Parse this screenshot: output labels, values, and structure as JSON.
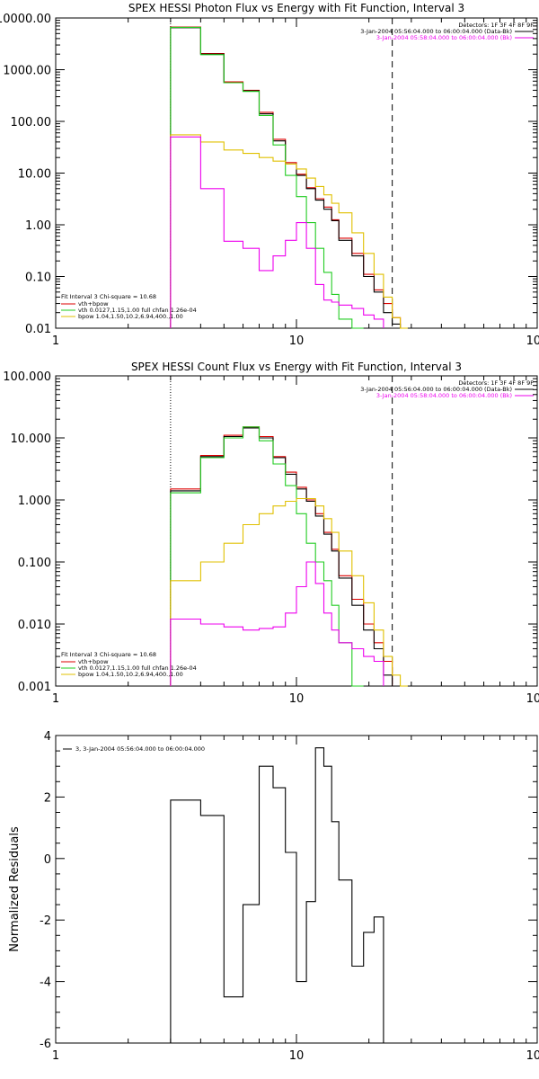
{
  "colors": {
    "total": "#000000",
    "vth_plus_bpow": "#dd0000",
    "vth": "#22cc22",
    "bpow": "#e0c000",
    "background": "#ee00ee",
    "frame": "#000000"
  },
  "chart_data": [
    {
      "type": "line",
      "step": true,
      "title": "SPEX HESSI Photon Flux vs Energy with Fit Function, Interval 3",
      "xlabel": "",
      "ylabel": "",
      "xscale": "log",
      "yscale": "log",
      "xlim": [
        1,
        100
      ],
      "ylim": [
        0.01,
        10000
      ],
      "xtick_labels": [
        "1",
        "10",
        "100"
      ],
      "ytick_values": [
        0.01,
        0.1,
        1,
        10,
        100,
        1000,
        10000
      ],
      "ytick_labels": [
        "0.01",
        "0.10",
        "1.00",
        "10.00",
        "100.00",
        "1000.00",
        "10000.00"
      ],
      "grid": false,
      "vlines": [
        {
          "x": 3,
          "style": "dotted"
        },
        {
          "x": 25,
          "style": "dashed"
        }
      ],
      "header": {
        "detectors": "Detectors: 1F 3F 4F 8F 9F",
        "lines": [
          {
            "text": "3-Jan-2004 05:56:04.000 to 06:00:04.000 (Data-Bk)",
            "color": "#000000"
          },
          {
            "text": "3-Jan-2004 05:58:04.000 to 06:00:04.000 (Bk)",
            "color": "#ee00ee"
          }
        ]
      },
      "legend_position": "bottom-left",
      "legend": {
        "title": "Fit Interval 3   Chi-square = 10.68",
        "entries": [
          {
            "label": "vth+bpow",
            "color": "#dd0000"
          },
          {
            "label": "vth 0.0127,1.15,1.00  full chfan 1.26e-04",
            "color": "#22cc22"
          },
          {
            "label": "bpow 1.04,1.50,10.2,6.94,400.,1.00",
            "color": "#e0c000"
          }
        ]
      },
      "energy_edges": [
        3,
        4,
        5,
        6,
        7,
        8,
        9,
        10,
        11,
        12,
        13,
        14,
        15,
        17,
        19,
        21,
        23,
        25,
        27,
        29
      ],
      "series": [
        {
          "name": "vth+bpow",
          "role": "vth_plus_bpow",
          "values": [
            6700,
            2050,
            580,
            400,
            150,
            45,
            16,
            9.5,
            5.2,
            3.2,
            2.2,
            1.25,
            0.55,
            0.28,
            0.11,
            0.055,
            0.03,
            0.016
          ]
        },
        {
          "name": "",
          "role": "total",
          "values": [
            6500,
            2000,
            560,
            390,
            140,
            42,
            15,
            9.0,
            5.0,
            3.0,
            2.0,
            1.2,
            0.5,
            0.25,
            0.1,
            0.05,
            0.02,
            0.012
          ]
        },
        {
          "name": "vth",
          "role": "vth",
          "values": [
            6600,
            1950,
            560,
            380,
            130,
            35,
            9,
            3.5,
            1.1,
            0.35,
            0.12,
            0.045,
            0.015,
            0.006
          ]
        },
        {
          "name": "bpow",
          "role": "bpow",
          "values": [
            55,
            40,
            28,
            24,
            20,
            17,
            15,
            12,
            8,
            5.5,
            3.8,
            2.6,
            1.7,
            0.7,
            0.28,
            0.11,
            0.04,
            0.016,
            0.009
          ]
        },
        {
          "name": "",
          "role": "background",
          "values": [
            50,
            5,
            0.48,
            0.35,
            0.13,
            0.25,
            0.5,
            1.1,
            0.35,
            0.07,
            0.035,
            0.032,
            0.028,
            0.024,
            0.018,
            0.015
          ]
        }
      ]
    },
    {
      "type": "line",
      "step": true,
      "title": "SPEX HESSI Count Flux vs Energy with Fit Function, Interval 3",
      "xlabel": "",
      "ylabel": "",
      "xscale": "log",
      "yscale": "log",
      "xlim": [
        1,
        100
      ],
      "ylim": [
        0.001,
        100
      ],
      "xtick_labels": [
        "1",
        "10",
        "100"
      ],
      "ytick_values": [
        0.001,
        0.01,
        0.1,
        1,
        10,
        100
      ],
      "ytick_labels": [
        "0.001",
        "0.010",
        "0.100",
        "1.000",
        "10.000",
        "100.000"
      ],
      "grid": false,
      "vlines": [
        {
          "x": 3,
          "style": "dotted"
        },
        {
          "x": 25,
          "style": "dashed"
        }
      ],
      "header": {
        "detectors": "Detectors: 1F 3F 4F 8F 9F",
        "lines": [
          {
            "text": "3-Jan-2004 05:56:04.000 to 06:00:04.000 (Data-Bk)",
            "color": "#000000"
          },
          {
            "text": "3-Jan-2004 05:58:04.000 to 06:00:04.000 (Bk)",
            "color": "#ee00ee"
          }
        ]
      },
      "legend_position": "bottom-left",
      "legend": {
        "title": "Fit Interval 3   Chi-square = 10.68",
        "entries": [
          {
            "label": "vth+bpow",
            "color": "#dd0000"
          },
          {
            "label": "vth 0.0127,1.15,1.00  full chfan 1.26e-04",
            "color": "#22cc22"
          },
          {
            "label": "bpow 1.04,1.50,10.2,6.94,400.,1.00",
            "color": "#e0c000"
          }
        ]
      },
      "energy_edges": [
        3,
        4,
        5,
        6,
        7,
        8,
        9,
        10,
        11,
        12,
        13,
        14,
        15,
        17,
        19,
        21,
        23,
        25,
        27,
        29
      ],
      "series": [
        {
          "name": "vth+bpow",
          "role": "vth_plus_bpow",
          "values": [
            1.5,
            5.2,
            11,
            15,
            10.5,
            5.0,
            2.8,
            1.6,
            1.0,
            0.6,
            0.3,
            0.16,
            0.06,
            0.025,
            0.01,
            0.005,
            0.0025
          ]
        },
        {
          "name": "",
          "role": "total",
          "values": [
            1.4,
            5.0,
            10.5,
            14.5,
            10,
            4.8,
            2.6,
            1.5,
            0.95,
            0.55,
            0.28,
            0.15,
            0.055,
            0.02,
            0.008,
            0.004,
            0.0015
          ]
        },
        {
          "name": "vth",
          "role": "vth",
          "values": [
            1.3,
            4.8,
            10,
            15,
            9,
            3.8,
            1.7,
            0.6,
            0.2,
            0.1,
            0.05,
            0.02,
            0.005,
            0.001
          ]
        },
        {
          "name": "bpow",
          "role": "bpow",
          "values": [
            0.05,
            0.1,
            0.2,
            0.4,
            0.6,
            0.8,
            0.95,
            1.05,
            1.05,
            0.8,
            0.5,
            0.3,
            0.15,
            0.06,
            0.022,
            0.008,
            0.003,
            0.0015,
            0.001
          ]
        },
        {
          "name": "",
          "role": "background",
          "values": [
            0.012,
            0.01,
            0.009,
            0.008,
            0.0085,
            0.009,
            0.015,
            0.04,
            0.1,
            0.045,
            0.015,
            0.008,
            0.005,
            0.004,
            0.003,
            0.0025
          ]
        }
      ]
    },
    {
      "type": "line",
      "step": true,
      "title": "",
      "xlabel": "",
      "ylabel": "Normalized Residuals",
      "xscale": "log",
      "yscale": "linear",
      "xlim": [
        1,
        100
      ],
      "ylim": [
        -6,
        4
      ],
      "xtick_labels": [
        "1",
        "10",
        "100"
      ],
      "ytick_values": [
        -6,
        -4,
        -2,
        0,
        2,
        4
      ],
      "ytick_labels": [
        "-6",
        "-4",
        "-2",
        "0",
        "2",
        "4"
      ],
      "grid": false,
      "legend_position": "top-left",
      "legend": {
        "entries": [
          {
            "label": "3,  3-Jan-2004 05:56:04.000 to 06:00:04.000",
            "color": "#000000"
          }
        ]
      },
      "energy_edges": [
        3,
        4,
        5,
        6,
        7,
        8,
        9,
        10,
        11,
        12,
        13,
        14,
        15,
        17,
        19,
        21,
        23,
        25
      ],
      "series": [
        {
          "name": "3,  3-Jan-2004 05:56:04.000 to 06:00:04.000",
          "role": "total",
          "values": [
            1.9,
            1.4,
            -4.5,
            -1.5,
            3.0,
            2.3,
            0.2,
            -4.0,
            -1.4,
            3.6,
            3.0,
            1.2,
            -0.7,
            -3.5,
            -2.4,
            -1.9
          ]
        }
      ]
    }
  ]
}
